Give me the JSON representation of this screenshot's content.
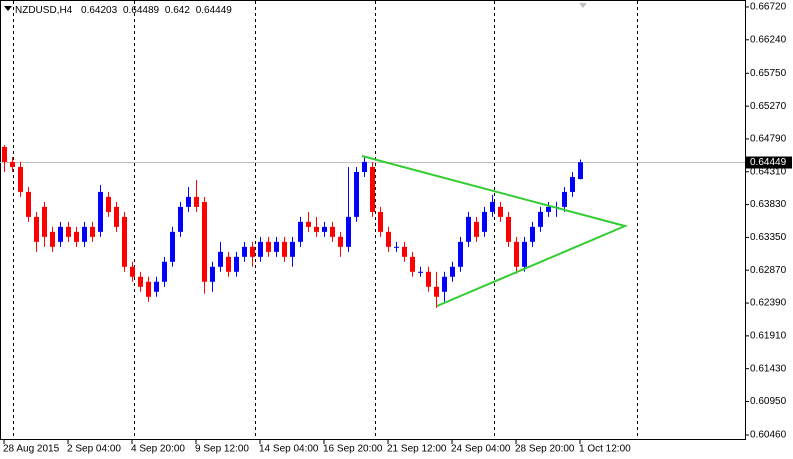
{
  "chart_data": {
    "type": "candlestick",
    "title": "NZDUSD,H4",
    "up_color": "#0000ff",
    "down_color": "#ff0000",
    "last_price_color": "#c0c0c0",
    "categories": [
      "28 Aug 2015",
      null,
      null,
      null,
      null,
      null,
      null,
      null,
      "2 Sep 04:00",
      null,
      null,
      null,
      null,
      null,
      null,
      null,
      "4 Sep 20:00",
      null,
      null,
      null,
      null,
      null,
      null,
      null,
      "9 Sep 12:00",
      null,
      null,
      null,
      null,
      null,
      null,
      null,
      "14 Sep 04:00",
      null,
      null,
      null,
      null,
      null,
      null,
      null,
      "16 Sep 20:00",
      null,
      null,
      null,
      null,
      null,
      null,
      null,
      "21 Sep 12:00",
      null,
      null,
      null,
      null,
      null,
      null,
      null,
      "24 Sep 04:00",
      null,
      null,
      null,
      null,
      null,
      null,
      null,
      "28 Sep 20:00",
      null,
      null,
      null,
      null,
      null,
      null,
      null,
      "1 Oct 12:00"
    ],
    "open": [
      0.64673,
      0.64454,
      0.6438,
      0.64015,
      0.6365,
      0.63796,
      0.63431,
      0.63285,
      0.63504,
      0.63431,
      0.63285,
      0.63504,
      0.63431,
      0.63942,
      0.63796,
      0.6365,
      0.6292,
      0.62774,
      0.62701,
      0.62555,
      0.62701,
      0.62993,
      0.63431,
      0.63796,
      0.63942,
      0.63869,
      0.62701,
      0.6292,
      0.63066,
      0.62847,
      0.63066,
      0.63212,
      0.63066,
      0.63285,
      0.63139,
      0.63285,
      0.63066,
      0.63285,
      0.63577,
      0.63504,
      0.63431,
      0.63504,
      0.63358,
      0.63212,
      0.6365,
      0.64307,
      0.6438,
      0.63723,
      0.63431,
      0.63212,
      0.63212,
      0.63066,
      0.62847,
      0.62847,
      0.62628,
      0.62555,
      0.62774,
      0.6292,
      0.63285,
      0.63577,
      0.63431,
      0.63723,
      0.63796,
      0.6365,
      0.63285,
      0.6292,
      0.63285,
      0.63504,
      0.63723,
      0.63796,
      0.63796,
      0.64015,
      0.64203
    ],
    "high": [
      0.64702,
      0.64527,
      0.64454,
      0.64088,
      0.63723,
      0.63869,
      0.63504,
      0.63577,
      0.63577,
      0.63504,
      0.63577,
      0.63577,
      0.64117,
      0.64015,
      0.63869,
      0.63723,
      0.62993,
      0.62847,
      0.62774,
      0.62774,
      0.63066,
      0.63504,
      0.63869,
      0.64088,
      0.6419,
      0.63942,
      0.62993,
      0.63285,
      0.63139,
      0.63139,
      0.63285,
      0.63285,
      0.63358,
      0.63358,
      0.63358,
      0.63358,
      0.63358,
      0.6365,
      0.63723,
      0.6365,
      0.63577,
      0.63577,
      0.63431,
      0.6438,
      0.6438,
      0.64527,
      0.64454,
      0.63796,
      0.63504,
      0.63285,
      0.63285,
      0.63139,
      0.6292,
      0.6292,
      0.62847,
      0.62847,
      0.62993,
      0.63358,
      0.63723,
      0.6365,
      0.63796,
      0.63971,
      0.63869,
      0.63723,
      0.63358,
      0.63358,
      0.63577,
      0.63796,
      0.63869,
      0.63869,
      0.64088,
      0.64307,
      0.64489
    ],
    "low": [
      0.64307,
      0.64307,
      0.63942,
      0.63577,
      0.63139,
      0.63212,
      0.63139,
      0.63212,
      0.63285,
      0.63212,
      0.63212,
      0.63285,
      0.63358,
      0.6365,
      0.63431,
      0.62847,
      0.62701,
      0.62555,
      0.62409,
      0.62482,
      0.62628,
      0.6292,
      0.63358,
      0.63723,
      0.63723,
      0.62526,
      0.62555,
      0.62847,
      0.62774,
      0.62774,
      0.62993,
      0.6292,
      0.62993,
      0.63066,
      0.63066,
      0.62993,
      0.6292,
      0.63212,
      0.63431,
      0.63358,
      0.63358,
      0.63285,
      0.63066,
      0.63139,
      0.63577,
      0.64234,
      0.6365,
      0.63358,
      0.63139,
      0.63139,
      0.62993,
      0.62774,
      0.62774,
      0.62555,
      0.62321,
      0.62409,
      0.62701,
      0.62847,
      0.63212,
      0.63285,
      0.63358,
      0.6365,
      0.63577,
      0.63212,
      0.62818,
      0.62847,
      0.63212,
      0.63431,
      0.6365,
      0.6365,
      0.63723,
      0.63942,
      0.642
    ],
    "close": [
      0.64454,
      0.6438,
      0.64015,
      0.6365,
      0.63285,
      0.63358,
      0.63212,
      0.63504,
      0.63358,
      0.63285,
      0.63504,
      0.63358,
      0.64015,
      0.63723,
      0.63504,
      0.6292,
      0.62774,
      0.62628,
      0.62482,
      0.62701,
      0.62993,
      0.63431,
      0.63796,
      0.63942,
      0.63796,
      0.62701,
      0.6292,
      0.63139,
      0.62847,
      0.63066,
      0.63212,
      0.63066,
      0.63285,
      0.63139,
      0.63285,
      0.63066,
      0.63285,
      0.63577,
      0.63504,
      0.63431,
      0.63504,
      0.63358,
      0.63212,
      0.6365,
      0.64307,
      0.64454,
      0.63723,
      0.63431,
      0.63212,
      0.63212,
      0.63066,
      0.62847,
      0.62847,
      0.62628,
      0.62482,
      0.62774,
      0.6292,
      0.63285,
      0.6365,
      0.63358,
      0.63723,
      0.63869,
      0.6365,
      0.63285,
      0.6292,
      0.63285,
      0.63504,
      0.63723,
      0.63796,
      0.63796,
      0.64015,
      0.64234,
      0.64449
    ],
    "ylim": [
      0.60387,
      0.66822
    ],
    "yticks": [
      {
        "value": 0.6672,
        "label": "0.66720"
      },
      {
        "value": 0.6624,
        "label": "0.66240"
      },
      {
        "value": 0.6575,
        "label": "0.65750"
      },
      {
        "value": 0.6527,
        "label": "0.65270"
      },
      {
        "value": 0.6479,
        "label": "0.64790"
      },
      {
        "value": 0.6431,
        "label": "0.64310"
      },
      {
        "value": 0.6383,
        "label": "0.63830"
      },
      {
        "value": 0.6335,
        "label": "0.63350"
      },
      {
        "value": 0.6287,
        "label": "0.62870"
      },
      {
        "value": 0.6239,
        "label": "0.62390"
      },
      {
        "value": 0.6191,
        "label": "0.61910"
      },
      {
        "value": 0.6143,
        "label": "0.61430"
      },
      {
        "value": 0.6095,
        "label": "0.60950"
      },
      {
        "value": 0.6046,
        "label": "0.60460"
      }
    ]
  }
}
